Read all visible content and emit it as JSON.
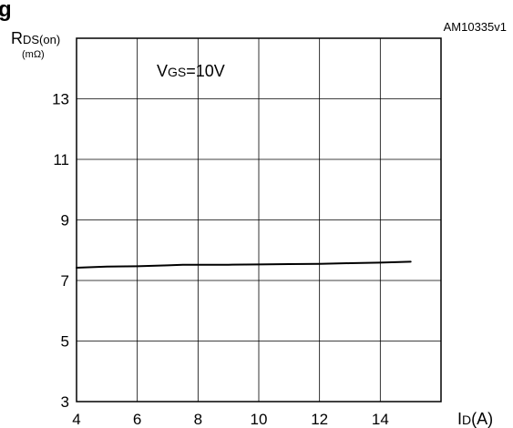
{
  "figure_label": "g",
  "figure_code": "AM10335v1",
  "chart_data": {
    "type": "line",
    "title": "",
    "ylabel_main": "R",
    "ylabel_sub": "DS(on)",
    "yunit": "(mΩ)",
    "xlabel_main": "I",
    "xlabel_sub": "D",
    "xlabel_unit": "(A)",
    "annotation_main": "V",
    "annotation_sub": "GS",
    "annotation_value": "=10V",
    "xlim": [
      4,
      16
    ],
    "ylim": [
      3,
      15
    ],
    "x_ticks": [
      4,
      6,
      8,
      10,
      12,
      14
    ],
    "y_ticks": [
      3,
      5,
      7,
      9,
      11,
      13
    ],
    "grid": true,
    "series": [
      {
        "x": [
          4,
          5,
          6,
          7,
          7.5,
          8,
          9,
          10,
          11,
          12,
          13,
          14,
          15
        ],
        "y": [
          7.42,
          7.46,
          7.47,
          7.5,
          7.52,
          7.52,
          7.52,
          7.53,
          7.54,
          7.55,
          7.57,
          7.59,
          7.62
        ]
      }
    ]
  }
}
